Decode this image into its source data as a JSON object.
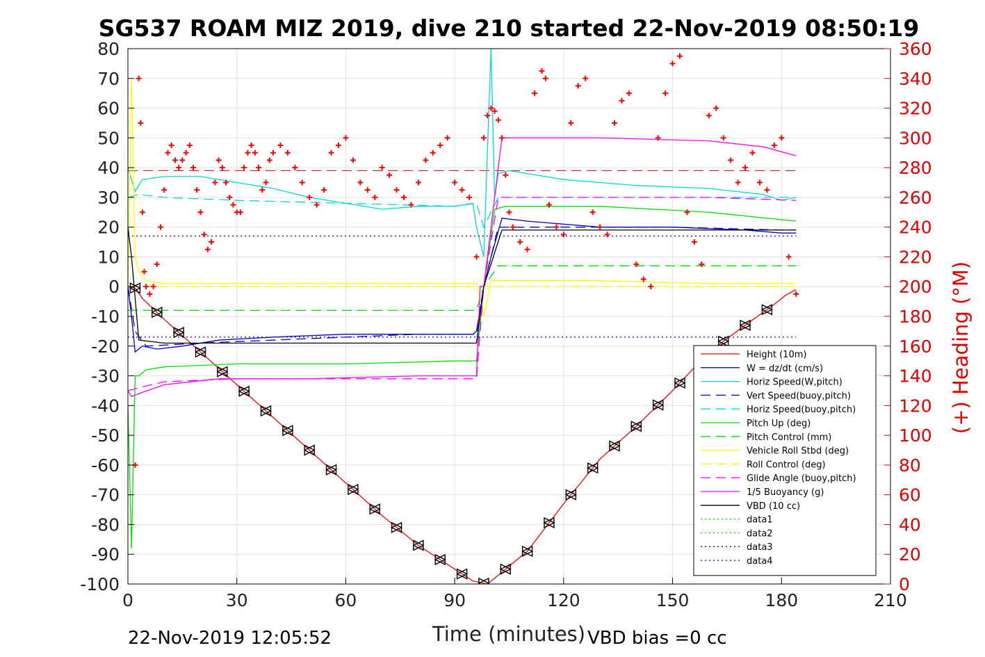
{
  "chart_data": {
    "type": "line",
    "title": "SG537 ROAM MIZ 2019, dive 210 started 22-Nov-2019 08:50:19",
    "xlabel": "Time (minutes)",
    "ylabel": "",
    "ylabel_right": "(+) Heading (°M)",
    "footer_left": "22-Nov-2019 12:05:52",
    "footer_right": "VBD bias =0 cc",
    "xlim": [
      0,
      210
    ],
    "ylim": [
      -100,
      80
    ],
    "ylim_right": [
      0,
      360
    ],
    "x_ticks": [
      "0",
      "30",
      "60",
      "90",
      "120",
      "150",
      "180",
      "210"
    ],
    "y_ticks": [
      "80",
      "70",
      "60",
      "50",
      "40",
      "30",
      "20",
      "10",
      "0",
      "-10",
      "-20",
      "-30",
      "-40",
      "-50",
      "-60",
      "-70",
      "-80",
      "-90",
      "-100"
    ],
    "y_ticks_right": [
      "360",
      "340",
      "320",
      "300",
      "280",
      "260",
      "240",
      "220",
      "200",
      "180",
      "160",
      "140",
      "120",
      "100",
      "80",
      "60",
      "40",
      "20",
      "0"
    ],
    "grid": true,
    "legend_position": "bottom-right",
    "series": [
      {
        "name": "Height (10m)",
        "color": "#ff0000",
        "style": "solid",
        "x": [
          0,
          2,
          4,
          10,
          20,
          30,
          40,
          50,
          60,
          70,
          80,
          90,
          95,
          99,
          103,
          110,
          120,
          130,
          140,
          150,
          160,
          170,
          178,
          181,
          184
        ],
        "y": [
          0,
          -0.5,
          -4,
          -11,
          -22,
          -33,
          -44,
          -55,
          -66,
          -77,
          -87,
          -95,
          -99,
          -100,
          -96,
          -89,
          -73,
          -58,
          -47,
          -35,
          -22,
          -13,
          -6,
          -3,
          -1
        ]
      },
      {
        "name": "W = dz/dt (cm/s)",
        "color": "#0000cc",
        "style": "solid",
        "x": [
          0,
          1,
          2,
          4,
          8,
          15,
          25,
          40,
          60,
          80,
          95,
          96,
          98,
          100,
          103,
          110,
          130,
          150,
          170,
          180,
          184
        ],
        "y": [
          0,
          -10,
          -22,
          -20,
          -21,
          -20,
          -18,
          -17,
          -16,
          -16,
          -16,
          -15,
          0,
          10,
          23,
          22,
          20,
          20,
          19,
          18,
          18
        ]
      },
      {
        "name": "Horiz Speed(W,pitch)",
        "color": "#00d8d8",
        "style": "solid",
        "x": [
          0,
          2,
          4,
          10,
          20,
          30,
          40,
          50,
          60,
          70,
          80,
          90,
          95,
          96,
          98,
          100,
          101,
          102,
          105,
          110,
          120,
          140,
          160,
          175,
          180,
          184
        ],
        "y": [
          40,
          32,
          36,
          37,
          37,
          35,
          33,
          30,
          28,
          26,
          27,
          27,
          28,
          20,
          10,
          80,
          30,
          38,
          39,
          38,
          36,
          34,
          33,
          31,
          29,
          30
        ]
      },
      {
        "name": "Vert Speed(buoy,pitch)",
        "color": "#0000cc",
        "style": "dashed",
        "x": [
          0,
          2,
          5,
          20,
          40,
          60,
          80,
          96,
          98,
          102,
          120,
          150,
          180,
          184
        ],
        "y": [
          0,
          -15,
          -20,
          -19,
          -18,
          -17,
          -16,
          -16,
          0,
          20,
          20,
          20,
          19,
          19
        ]
      },
      {
        "name": "Horiz Speed(buoy,pitch)",
        "color": "#00d8d8",
        "style": "dashed",
        "x": [
          0,
          3,
          10,
          30,
          60,
          90,
          96,
          98,
          102,
          130,
          160,
          184
        ],
        "y": [
          30,
          31,
          30,
          29,
          28,
          27,
          28,
          20,
          30,
          30,
          30,
          30
        ]
      },
      {
        "name": "Pitch Up (deg)",
        "color": "#00e000",
        "style": "solid",
        "x": [
          0,
          1,
          2,
          3,
          5,
          10,
          30,
          60,
          90,
          96,
          98,
          101,
          104,
          130,
          160,
          184
        ],
        "y": [
          -40,
          -88,
          -30,
          -30,
          -28,
          -27,
          -26,
          -26,
          -25,
          -25,
          0,
          26,
          27,
          27,
          25,
          22
        ]
      },
      {
        "name": "Pitch Control (mm)",
        "color": "#00e000",
        "style": "dashed",
        "x": [
          0,
          3,
          96,
          98,
          102,
          184
        ],
        "y": [
          -8,
          -8,
          -8,
          0,
          7,
          7
        ]
      },
      {
        "name": "Vehicle Roll Stbd (deg)",
        "color": "#ffff00",
        "style": "solid",
        "x": [
          0,
          1,
          2,
          3,
          5,
          10,
          20,
          40,
          60,
          80,
          96,
          98,
          100,
          130,
          160,
          184
        ],
        "y": [
          0,
          70,
          10,
          5,
          2,
          1,
          1,
          1,
          1,
          1,
          1,
          -10,
          2,
          2,
          1,
          1
        ]
      },
      {
        "name": "Roll Control (deg)",
        "color": "#ffff00",
        "style": "dashed",
        "x": [
          0,
          184
        ],
        "y": [
          0,
          0
        ]
      },
      {
        "name": "Glide Angle (buoy,pitch)",
        "color": "#ff00ff",
        "style": "dashed",
        "x": [
          0,
          3,
          10,
          30,
          60,
          90,
          96,
          98,
          102,
          130,
          160,
          184
        ],
        "y": [
          -35,
          -34,
          -32,
          -31,
          -31,
          -31,
          -31,
          0,
          30,
          30,
          30,
          29
        ]
      },
      {
        "name": "1/5 Buoyancy (g)",
        "color": "#ff00ff",
        "style": "solid",
        "x": [
          0,
          1,
          3,
          10,
          25,
          50,
          80,
          96,
          97,
          98,
          103,
          130,
          160,
          175,
          184
        ],
        "y": [
          -35,
          -37,
          -36,
          -33,
          -31,
          -31,
          -30,
          -30,
          0,
          0,
          50,
          50,
          49,
          47,
          44
        ]
      },
      {
        "name": "VBD (10 cc)",
        "color": "#000000",
        "style": "solid",
        "x": [
          0,
          1,
          3,
          10,
          96,
          98,
          103,
          184
        ],
        "y": [
          20,
          10,
          -18,
          -19,
          -19,
          0,
          19,
          19
        ]
      },
      {
        "name": "data1",
        "color": "#00e000",
        "style": "dotted",
        "x": [],
        "y": []
      },
      {
        "name": "data2",
        "color": "#00e000",
        "style": "dotted",
        "x": [],
        "y": []
      },
      {
        "name": "data3",
        "color": "#0000cc",
        "style": "dotted",
        "x": [
          0,
          184
        ],
        "y": [
          17,
          17
        ]
      },
      {
        "name": "data4",
        "color": "#0000cc",
        "style": "dotted",
        "x": [
          0,
          184
        ],
        "y": [
          -17,
          -17
        ]
      }
    ],
    "reference_lines": [
      {
        "color": "#cc0000",
        "style": "dashed",
        "y": 39,
        "x_range": [
          0,
          184
        ]
      }
    ],
    "heading_markers": {
      "color": "#ff0000",
      "marker": "+",
      "axis": "right",
      "x": [
        2,
        3,
        3.5,
        4,
        4.5,
        5,
        6,
        7,
        8,
        9,
        10,
        11,
        12,
        13,
        14,
        15,
        16,
        17,
        18,
        19,
        20,
        21,
        22,
        23,
        24,
        25,
        26,
        27,
        28,
        29,
        30,
        31,
        32,
        33,
        34,
        35,
        36,
        37,
        38,
        39,
        40,
        42,
        44,
        46,
        48,
        50,
        52,
        54,
        56,
        58,
        60,
        62,
        64,
        66,
        68,
        70,
        72,
        74,
        76,
        78,
        80,
        82,
        84,
        86,
        88,
        90,
        92,
        94,
        96,
        98,
        99,
        100,
        101,
        102,
        103,
        104,
        105,
        106,
        108,
        110,
        112,
        114,
        115,
        116,
        118,
        120,
        122,
        124,
        126,
        128,
        130,
        132,
        134,
        136,
        138,
        140,
        142,
        144,
        146,
        148,
        150,
        152,
        154,
        156,
        158,
        160,
        162,
        164,
        166,
        168,
        170,
        172,
        174,
        176,
        178,
        180,
        182,
        184
      ],
      "y": [
        80,
        340,
        310,
        250,
        210,
        200,
        195,
        200,
        215,
        240,
        265,
        290,
        295,
        285,
        280,
        285,
        290,
        295,
        280,
        265,
        250,
        235,
        225,
        230,
        270,
        285,
        280,
        270,
        260,
        255,
        250,
        250,
        280,
        290,
        295,
        290,
        280,
        265,
        270,
        285,
        290,
        295,
        290,
        280,
        270,
        260,
        255,
        265,
        290,
        295,
        300,
        285,
        270,
        265,
        260,
        280,
        275,
        265,
        260,
        255,
        270,
        285,
        290,
        295,
        300,
        270,
        265,
        260,
        220,
        300,
        315,
        320,
        318,
        312,
        300,
        275,
        250,
        240,
        230,
        225,
        330,
        345,
        340,
        255,
        240,
        235,
        310,
        335,
        340,
        250,
        240,
        235,
        310,
        325,
        330,
        215,
        205,
        200,
        300,
        330,
        350,
        355,
        250,
        230,
        215,
        315,
        320,
        300,
        285,
        270,
        280,
        290,
        270,
        265,
        295,
        300,
        220,
        195
      ]
    }
  }
}
